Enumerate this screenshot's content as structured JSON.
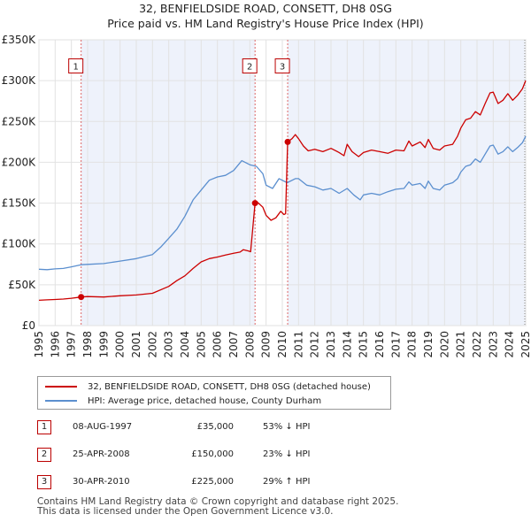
{
  "chart_data": {
    "type": "line",
    "title": "32, BENFIELDSIDE ROAD, CONSETT, DH8 0SG",
    "subtitle": "Price paid vs. HM Land Registry's House Price Index (HPI)",
    "xlim": [
      1995,
      2025
    ],
    "ylim": [
      0,
      350000
    ],
    "yticks": [
      0,
      50000,
      100000,
      150000,
      200000,
      250000,
      300000,
      350000
    ],
    "ytick_labels": [
      "£0",
      "£50K",
      "£100K",
      "£150K",
      "£200K",
      "£250K",
      "£300K",
      "£350K"
    ],
    "xticks": [
      1995,
      1996,
      1997,
      1998,
      1999,
      2000,
      2001,
      2002,
      2003,
      2004,
      2005,
      2006,
      2007,
      2008,
      2009,
      2010,
      2011,
      2012,
      2013,
      2014,
      2015,
      2016,
      2017,
      2018,
      2019,
      2020,
      2021,
      2022,
      2023,
      2024,
      2025
    ],
    "xtick_labels": [
      "1995",
      "1996",
      "1997",
      "1998",
      "1999",
      "2000",
      "2001",
      "2002",
      "2003",
      "2004",
      "2005",
      "2006",
      "2007",
      "2008",
      "2009",
      "2010",
      "2011",
      "2012",
      "2013",
      "2014",
      "2015",
      "2016",
      "2017",
      "2018",
      "2019",
      "2020",
      "2021",
      "2022",
      "2023",
      "2024",
      "2025"
    ],
    "grid": true,
    "series": [
      {
        "name": "32, BENFIELDSIDE ROAD, CONSETT, DH8 0SG (detached house)",
        "color": "#cc0000",
        "points": [
          [
            1995.0,
            31000
          ],
          [
            1995.5,
            31500
          ],
          [
            1996.0,
            32000
          ],
          [
            1996.5,
            32500
          ],
          [
            1997.0,
            33500
          ],
          [
            1997.6,
            35000
          ],
          [
            1998.0,
            35500
          ],
          [
            1999.0,
            35000
          ],
          [
            2000.0,
            36500
          ],
          [
            2001.0,
            37500
          ],
          [
            2002.0,
            39500
          ],
          [
            2003.0,
            48000
          ],
          [
            2003.5,
            55000
          ],
          [
            2004.0,
            61000
          ],
          [
            2004.5,
            70000
          ],
          [
            2005.0,
            78000
          ],
          [
            2005.5,
            82000
          ],
          [
            2006.0,
            84000
          ],
          [
            2006.5,
            86500
          ],
          [
            2007.0,
            88500
          ],
          [
            2007.4,
            90000
          ],
          [
            2007.6,
            93000
          ],
          [
            2007.9,
            91500
          ],
          [
            2008.05,
            90500
          ],
          [
            2008.32,
            150000
          ],
          [
            2008.5,
            150500
          ],
          [
            2008.8,
            145000
          ],
          [
            2009.0,
            135000
          ],
          [
            2009.3,
            129000
          ],
          [
            2009.6,
            132000
          ],
          [
            2009.9,
            140000
          ],
          [
            2010.1,
            136000
          ],
          [
            2010.2,
            137000
          ],
          [
            2010.33,
            225000
          ],
          [
            2010.6,
            229000
          ],
          [
            2010.8,
            234000
          ],
          [
            2011.0,
            229000
          ],
          [
            2011.3,
            220000
          ],
          [
            2011.6,
            214000
          ],
          [
            2012.0,
            216000
          ],
          [
            2012.5,
            213000
          ],
          [
            2013.0,
            217000
          ],
          [
            2013.5,
            212000
          ],
          [
            2013.8,
            208000
          ],
          [
            2014.0,
            222000
          ],
          [
            2014.3,
            213000
          ],
          [
            2014.7,
            207000
          ],
          [
            2015.0,
            212000
          ],
          [
            2015.5,
            215000
          ],
          [
            2016.0,
            213000
          ],
          [
            2016.5,
            211000
          ],
          [
            2017.0,
            215000
          ],
          [
            2017.5,
            214000
          ],
          [
            2017.8,
            226000
          ],
          [
            2018.0,
            220000
          ],
          [
            2018.5,
            225000
          ],
          [
            2018.8,
            218000
          ],
          [
            2019.0,
            228000
          ],
          [
            2019.3,
            217000
          ],
          [
            2019.7,
            215000
          ],
          [
            2020.0,
            220000
          ],
          [
            2020.5,
            222000
          ],
          [
            2020.8,
            232000
          ],
          [
            2021.0,
            242000
          ],
          [
            2021.3,
            252000
          ],
          [
            2021.6,
            254000
          ],
          [
            2021.9,
            262000
          ],
          [
            2022.2,
            258000
          ],
          [
            2022.5,
            272000
          ],
          [
            2022.8,
            285000
          ],
          [
            2023.0,
            286000
          ],
          [
            2023.3,
            272000
          ],
          [
            2023.6,
            276000
          ],
          [
            2023.9,
            284000
          ],
          [
            2024.2,
            276000
          ],
          [
            2024.5,
            282000
          ],
          [
            2024.8,
            290000
          ],
          [
            2025.0,
            300000
          ]
        ]
      },
      {
        "name": "HPI: Average price, detached house, County Durham",
        "color": "#5b8fcf",
        "points": [
          [
            1995.0,
            69000
          ],
          [
            1995.5,
            68500
          ],
          [
            1996.0,
            69500
          ],
          [
            1996.5,
            70000
          ],
          [
            1997.0,
            72000
          ],
          [
            1997.6,
            74500
          ],
          [
            1998.0,
            75000
          ],
          [
            1999.0,
            76000
          ],
          [
            2000.0,
            79000
          ],
          [
            2001.0,
            82000
          ],
          [
            2002.0,
            87000
          ],
          [
            2002.5,
            96000
          ],
          [
            2003.0,
            107000
          ],
          [
            2003.5,
            118000
          ],
          [
            2004.0,
            134000
          ],
          [
            2004.5,
            154000
          ],
          [
            2005.0,
            166000
          ],
          [
            2005.5,
            178000
          ],
          [
            2006.0,
            182000
          ],
          [
            2006.5,
            184000
          ],
          [
            2007.0,
            190000
          ],
          [
            2007.5,
            202000
          ],
          [
            2008.0,
            197000
          ],
          [
            2008.4,
            195000
          ],
          [
            2008.8,
            186000
          ],
          [
            2009.0,
            172000
          ],
          [
            2009.4,
            168000
          ],
          [
            2009.8,
            180000
          ],
          [
            2010.3,
            175000
          ],
          [
            2010.8,
            180000
          ],
          [
            2011.0,
            180000
          ],
          [
            2011.5,
            172000
          ],
          [
            2012.0,
            170000
          ],
          [
            2012.5,
            166000
          ],
          [
            2013.0,
            168000
          ],
          [
            2013.5,
            162000
          ],
          [
            2014.0,
            168000
          ],
          [
            2014.4,
            160000
          ],
          [
            2014.8,
            154000
          ],
          [
            2015.0,
            160000
          ],
          [
            2015.5,
            162000
          ],
          [
            2016.0,
            160000
          ],
          [
            2016.5,
            164000
          ],
          [
            2017.0,
            167000
          ],
          [
            2017.5,
            168000
          ],
          [
            2017.8,
            176000
          ],
          [
            2018.0,
            172000
          ],
          [
            2018.5,
            174000
          ],
          [
            2018.8,
            168000
          ],
          [
            2019.0,
            177000
          ],
          [
            2019.3,
            168000
          ],
          [
            2019.7,
            166000
          ],
          [
            2020.0,
            172000
          ],
          [
            2020.5,
            175000
          ],
          [
            2020.8,
            180000
          ],
          [
            2021.0,
            188000
          ],
          [
            2021.3,
            195000
          ],
          [
            2021.6,
            197000
          ],
          [
            2021.9,
            204000
          ],
          [
            2022.2,
            200000
          ],
          [
            2022.5,
            210000
          ],
          [
            2022.8,
            220000
          ],
          [
            2023.0,
            221000
          ],
          [
            2023.3,
            210000
          ],
          [
            2023.6,
            213000
          ],
          [
            2023.9,
            219000
          ],
          [
            2024.2,
            213000
          ],
          [
            2024.5,
            218000
          ],
          [
            2024.8,
            224000
          ],
          [
            2025.0,
            232000
          ]
        ]
      }
    ],
    "sales": [
      {
        "label": "1",
        "x": 1997.6,
        "price": 35000
      },
      {
        "label": "2",
        "x": 2008.32,
        "price": 150000
      },
      {
        "label": "3",
        "x": 2010.33,
        "price": 225000
      }
    ],
    "annotation_y": 318000
  },
  "legend": {
    "property_label": "32, BENFIELDSIDE ROAD, CONSETT, DH8 0SG (detached house)",
    "hpi_label": "HPI: Average price, detached house, County Durham"
  },
  "sales_table": [
    {
      "num": "1",
      "date": "08-AUG-1997",
      "price": "£35,000",
      "hpi": "53% ↓ HPI"
    },
    {
      "num": "2",
      "date": "25-APR-2008",
      "price": "£150,000",
      "hpi": "23% ↓ HPI"
    },
    {
      "num": "3",
      "date": "30-APR-2010",
      "price": "£225,000",
      "hpi": "29% ↑ HPI"
    }
  ],
  "footer": "Contains HM Land Registry data © Crown copyright and database right 2025.\nThis data is licensed under the Open Government Licence v3.0."
}
